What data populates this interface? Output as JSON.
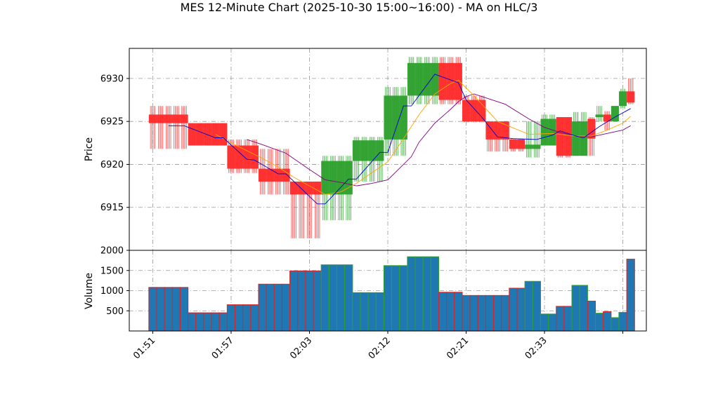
{
  "chart_data": {
    "type": "candlestick",
    "title": "MES 12-Minute Chart (2025-10-30 15:00~16:00) - MA on HLC/3",
    "price_panel": {
      "ylabel": "Price",
      "ylim": [
        6910.0,
        6933.5
      ],
      "yticks": [
        6915,
        6920,
        6925,
        6930
      ],
      "grid": true
    },
    "volume_panel": {
      "ylabel": "Volume",
      "ylim": [
        0,
        2000
      ],
      "yticks": [
        500,
        1000,
        1500,
        2000
      ],
      "grid": true
    },
    "xlim": [
      -3,
      63
    ],
    "x_ticks": [
      {
        "x": 0,
        "label": "01:51"
      },
      {
        "x": 10,
        "label": "01:57"
      },
      {
        "x": 20,
        "label": "02:03"
      },
      {
        "x": 30,
        "label": "02:12"
      },
      {
        "x": 40,
        "label": "02:21"
      },
      {
        "x": 50,
        "label": "02:33"
      },
      {
        "x": 60,
        "label": ""
      }
    ],
    "colors": {
      "up": "#2ca02c",
      "down": "#ff2a2a",
      "volume": "#1f77b4",
      "volume_edge_up": "#2ca02c",
      "volume_edge_down": "#d62728",
      "ma_fast": "#0000cc",
      "ma_mid": "#ffa500",
      "ma_slow": "#800080",
      "grid": "#999999"
    },
    "groups": [
      {
        "start": 0,
        "end": 4,
        "open": 6925.8,
        "high": 6926.8,
        "low": 6921.8,
        "close": 6924.8,
        "volume": 1080
      },
      {
        "start": 5,
        "end": 9,
        "open": 6924.8,
        "high": 6924.8,
        "low": 6922.2,
        "close": 6922.2,
        "volume": 450
      },
      {
        "start": 10,
        "end": 13,
        "open": 6922.2,
        "high": 6922.9,
        "low": 6919.0,
        "close": 6919.5,
        "volume": 650
      },
      {
        "start": 14,
        "end": 17,
        "open": 6919.5,
        "high": 6921.8,
        "low": 6916.5,
        "close": 6918.0,
        "volume": 1160
      },
      {
        "start": 18,
        "end": 21,
        "open": 6918.0,
        "high": 6918.0,
        "low": 6911.4,
        "close": 6916.5,
        "volume": 1490
      },
      {
        "start": 22,
        "end": 25,
        "open": 6916.5,
        "high": 6921.0,
        "low": 6913.5,
        "close": 6920.4,
        "volume": 1640
      },
      {
        "start": 26,
        "end": 29,
        "open": 6920.4,
        "high": 6923.2,
        "low": 6918.0,
        "close": 6922.8,
        "volume": 950
      },
      {
        "start": 30,
        "end": 32,
        "open": 6922.9,
        "high": 6929.0,
        "low": 6921.0,
        "close": 6928.0,
        "volume": 1620
      },
      {
        "start": 33,
        "end": 36,
        "open": 6928.0,
        "high": 6932.5,
        "low": 6927.0,
        "close": 6931.8,
        "volume": 1840
      },
      {
        "start": 37,
        "end": 39,
        "open": 6931.8,
        "high": 6932.5,
        "low": 6927.0,
        "close": 6927.5,
        "volume": 960
      },
      {
        "start": 40,
        "end": 42,
        "open": 6927.5,
        "high": 6928.0,
        "low": 6924.9,
        "close": 6925.0,
        "volume": 880
      },
      {
        "start": 43,
        "end": 45,
        "open": 6925.0,
        "high": 6925.0,
        "low": 6921.5,
        "close": 6922.9,
        "volume": 880
      },
      {
        "start": 46,
        "end": 47,
        "open": 6922.9,
        "high": 6923.0,
        "low": 6921.5,
        "close": 6921.8,
        "volume": 1060
      },
      {
        "start": 48,
        "end": 49,
        "open": 6921.8,
        "high": 6925.0,
        "low": 6920.8,
        "close": 6922.3,
        "volume": 1230
      },
      {
        "start": 50,
        "end": 51,
        "open": 6922.2,
        "high": 6925.8,
        "low": 6922.2,
        "close": 6925.3,
        "volume": 420
      },
      {
        "start": 52,
        "end": 53,
        "open": 6925.5,
        "high": 6925.5,
        "low": 6920.8,
        "close": 6921.0,
        "volume": 610
      },
      {
        "start": 54,
        "end": 55,
        "open": 6921.0,
        "high": 6926.1,
        "low": 6921.0,
        "close": 6925.0,
        "volume": 1130
      },
      {
        "start": 56,
        "end": 56,
        "open": 6925.3,
        "high": 6925.5,
        "low": 6921.0,
        "close": 6923.0,
        "volume": 740
      },
      {
        "start": 57,
        "end": 57,
        "open": 6925.5,
        "high": 6926.8,
        "low": 6925.0,
        "close": 6925.8,
        "volume": 440
      },
      {
        "start": 58,
        "end": 58,
        "open": 6925.8,
        "high": 6926.2,
        "low": 6924.0,
        "close": 6925.0,
        "volume": 480
      },
      {
        "start": 59,
        "end": 59,
        "open": 6925.0,
        "high": 6926.8,
        "low": 6925.0,
        "close": 6926.8,
        "volume": 330
      },
      {
        "start": 60,
        "end": 60,
        "open": 6926.8,
        "high": 6928.8,
        "low": 6926.5,
        "close": 6928.5,
        "volume": 460
      },
      {
        "start": 61,
        "end": 61,
        "open": 6928.5,
        "high": 6930.0,
        "low": 6927.0,
        "close": 6927.2,
        "volume": 1780
      }
    ],
    "ma_fast": [
      [
        2,
        6924.5
      ],
      [
        4,
        6924.5
      ],
      [
        8,
        6923.1
      ],
      [
        9,
        6923.1
      ],
      [
        12,
        6920.6
      ],
      [
        13,
        6920.5
      ],
      [
        16,
        6918.9
      ],
      [
        17,
        6918.9
      ],
      [
        21,
        6915.4
      ],
      [
        22,
        6915.4
      ],
      [
        25,
        6918.3
      ],
      [
        26,
        6918.3
      ],
      [
        29,
        6921.4
      ],
      [
        30,
        6921.4
      ],
      [
        32,
        6926.8
      ],
      [
        33,
        6926.8
      ],
      [
        36,
        6930.5
      ],
      [
        39,
        6929.5
      ],
      [
        40,
        6927.5
      ],
      [
        42,
        6925.5
      ],
      [
        44,
        6923.2
      ],
      [
        46,
        6923.0
      ],
      [
        49,
        6922.9
      ],
      [
        51,
        6923.4
      ],
      [
        52,
        6923.9
      ],
      [
        54,
        6923.3
      ],
      [
        55,
        6923.1
      ],
      [
        57,
        6924.4
      ],
      [
        59,
        6925.5
      ],
      [
        61,
        6926.5
      ]
    ],
    "ma_mid": [
      [
        8,
        6923.5
      ],
      [
        10,
        6922.5
      ],
      [
        14,
        6920.7
      ],
      [
        16,
        6919.7
      ],
      [
        18,
        6918.5
      ],
      [
        20,
        6917.5
      ],
      [
        22,
        6916.5
      ],
      [
        24,
        6916.8
      ],
      [
        26,
        6917.8
      ],
      [
        30,
        6920.3
      ],
      [
        32,
        6923.0
      ],
      [
        34,
        6925.8
      ],
      [
        36,
        6928.2
      ],
      [
        38,
        6929.4
      ],
      [
        39,
        6929.8
      ],
      [
        41,
        6928.0
      ],
      [
        44,
        6925.0
      ],
      [
        48,
        6923.5
      ],
      [
        51,
        6923.6
      ],
      [
        54,
        6923.3
      ],
      [
        56,
        6923.3
      ],
      [
        58,
        6924.0
      ],
      [
        60,
        6924.8
      ],
      [
        61,
        6925.6
      ]
    ],
    "ma_slow": [
      [
        12,
        6922.9
      ],
      [
        14,
        6922.3
      ],
      [
        17,
        6921.3
      ],
      [
        20,
        6919.4
      ],
      [
        22,
        6918.2
      ],
      [
        24,
        6917.9
      ],
      [
        26,
        6917.5
      ],
      [
        28,
        6917.8
      ],
      [
        30,
        6918.2
      ],
      [
        33,
        6920.9
      ],
      [
        34,
        6922.6
      ],
      [
        36,
        6924.8
      ],
      [
        38,
        6926.4
      ],
      [
        39,
        6927.3
      ],
      [
        40,
        6927.9
      ],
      [
        41,
        6928.2
      ],
      [
        45,
        6927.0
      ],
      [
        48,
        6925.3
      ],
      [
        50,
        6924.3
      ],
      [
        52,
        6923.7
      ],
      [
        54,
        6923.3
      ],
      [
        56,
        6923.2
      ],
      [
        58,
        6923.6
      ],
      [
        60,
        6924.0
      ],
      [
        61,
        6924.5
      ]
    ]
  }
}
